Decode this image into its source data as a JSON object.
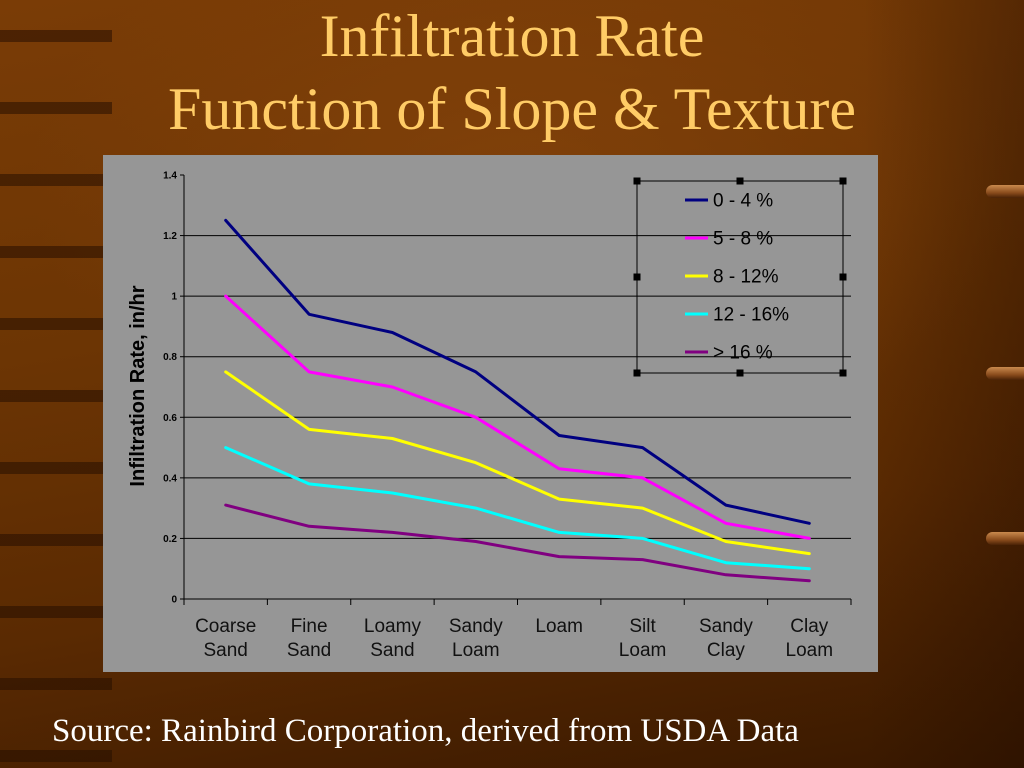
{
  "slide": {
    "title": {
      "line1": "Infiltration Rate",
      "line2": "Function of Slope & Texture"
    },
    "source": "Source: Rainbird Corporation, derived from USDA Data"
  },
  "colors": {
    "title_text": "#FFCC66",
    "source_text": "#FFFFFF",
    "chart_background": "#969696",
    "axis_and_grid": "#000000"
  },
  "chart_data": {
    "type": "line",
    "ylabel": "Infiltration Rate, in/hr",
    "categories": [
      "Coarse Sand",
      "Fine Sand",
      "Loamy Sand",
      "Sandy Loam",
      "Loam",
      "Silt Loam",
      "Sandy Clay",
      "Clay Loam"
    ],
    "ylim": [
      0,
      1.4
    ],
    "yticks": [
      "0",
      "0.2",
      "0.4",
      "0.6",
      "0.8",
      "1",
      "1.2",
      "1.4"
    ],
    "grid": "horizontal",
    "legend": "top-right",
    "series": [
      {
        "name": "0 - 4 %",
        "color": "#000080",
        "values": [
          1.25,
          0.94,
          0.88,
          0.75,
          0.54,
          0.5,
          0.31,
          0.25
        ]
      },
      {
        "name": "5 - 8 %",
        "color": "#FF00FF",
        "values": [
          1.0,
          0.75,
          0.7,
          0.6,
          0.43,
          0.4,
          0.25,
          0.2
        ]
      },
      {
        "name": "8 - 12%",
        "color": "#FFFF00",
        "values": [
          0.75,
          0.56,
          0.53,
          0.45,
          0.33,
          0.3,
          0.19,
          0.15
        ]
      },
      {
        "name": "12 - 16%",
        "color": "#00FFFF",
        "values": [
          0.5,
          0.38,
          0.35,
          0.3,
          0.22,
          0.2,
          0.12,
          0.1
        ]
      },
      {
        "name": "> 16 %",
        "color": "#800080",
        "values": [
          0.31,
          0.24,
          0.22,
          0.19,
          0.14,
          0.13,
          0.08,
          0.06
        ]
      }
    ]
  }
}
